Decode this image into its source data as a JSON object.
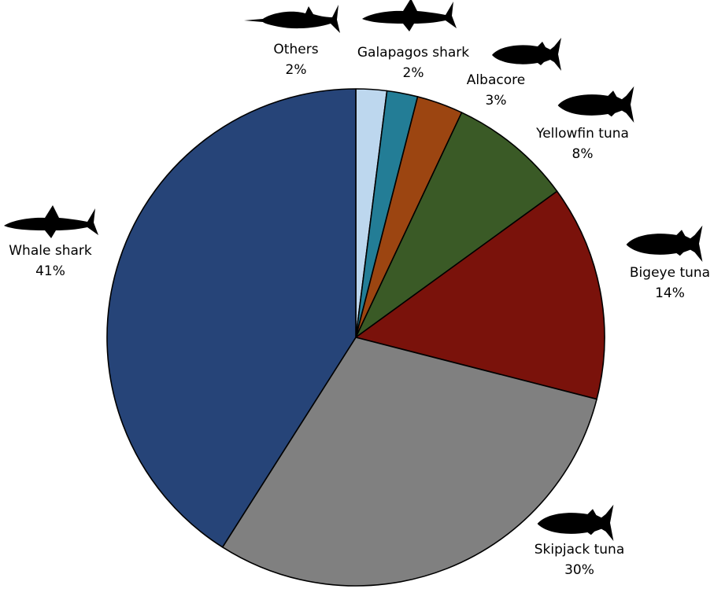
{
  "chart_data": {
    "type": "pie",
    "title": "",
    "slices": [
      {
        "name": "Others",
        "value": 2,
        "label": "2%",
        "color": "#bdd7ee",
        "icon": "fish-icon"
      },
      {
        "name": "Galapagos shark",
        "value": 2,
        "label": "2%",
        "color": "#237d96",
        "icon": "shark-icon"
      },
      {
        "name": "Albacore",
        "value": 3,
        "label": "3%",
        "color": "#9c4511",
        "icon": "tuna-icon"
      },
      {
        "name": "Yellowfin tuna",
        "value": 8,
        "label": "8%",
        "color": "#3a5a26",
        "icon": "tuna-icon"
      },
      {
        "name": "Bigeye tuna",
        "value": 14,
        "label": "14%",
        "color": "#7a120b",
        "icon": "tuna-icon"
      },
      {
        "name": "Skipjack tuna",
        "value": 30,
        "label": "30%",
        "color": "#808080",
        "icon": "tuna-icon"
      },
      {
        "name": "Whale shark",
        "value": 41,
        "label": "41%",
        "color": "#264478",
        "icon": "whale-shark-icon"
      }
    ]
  }
}
